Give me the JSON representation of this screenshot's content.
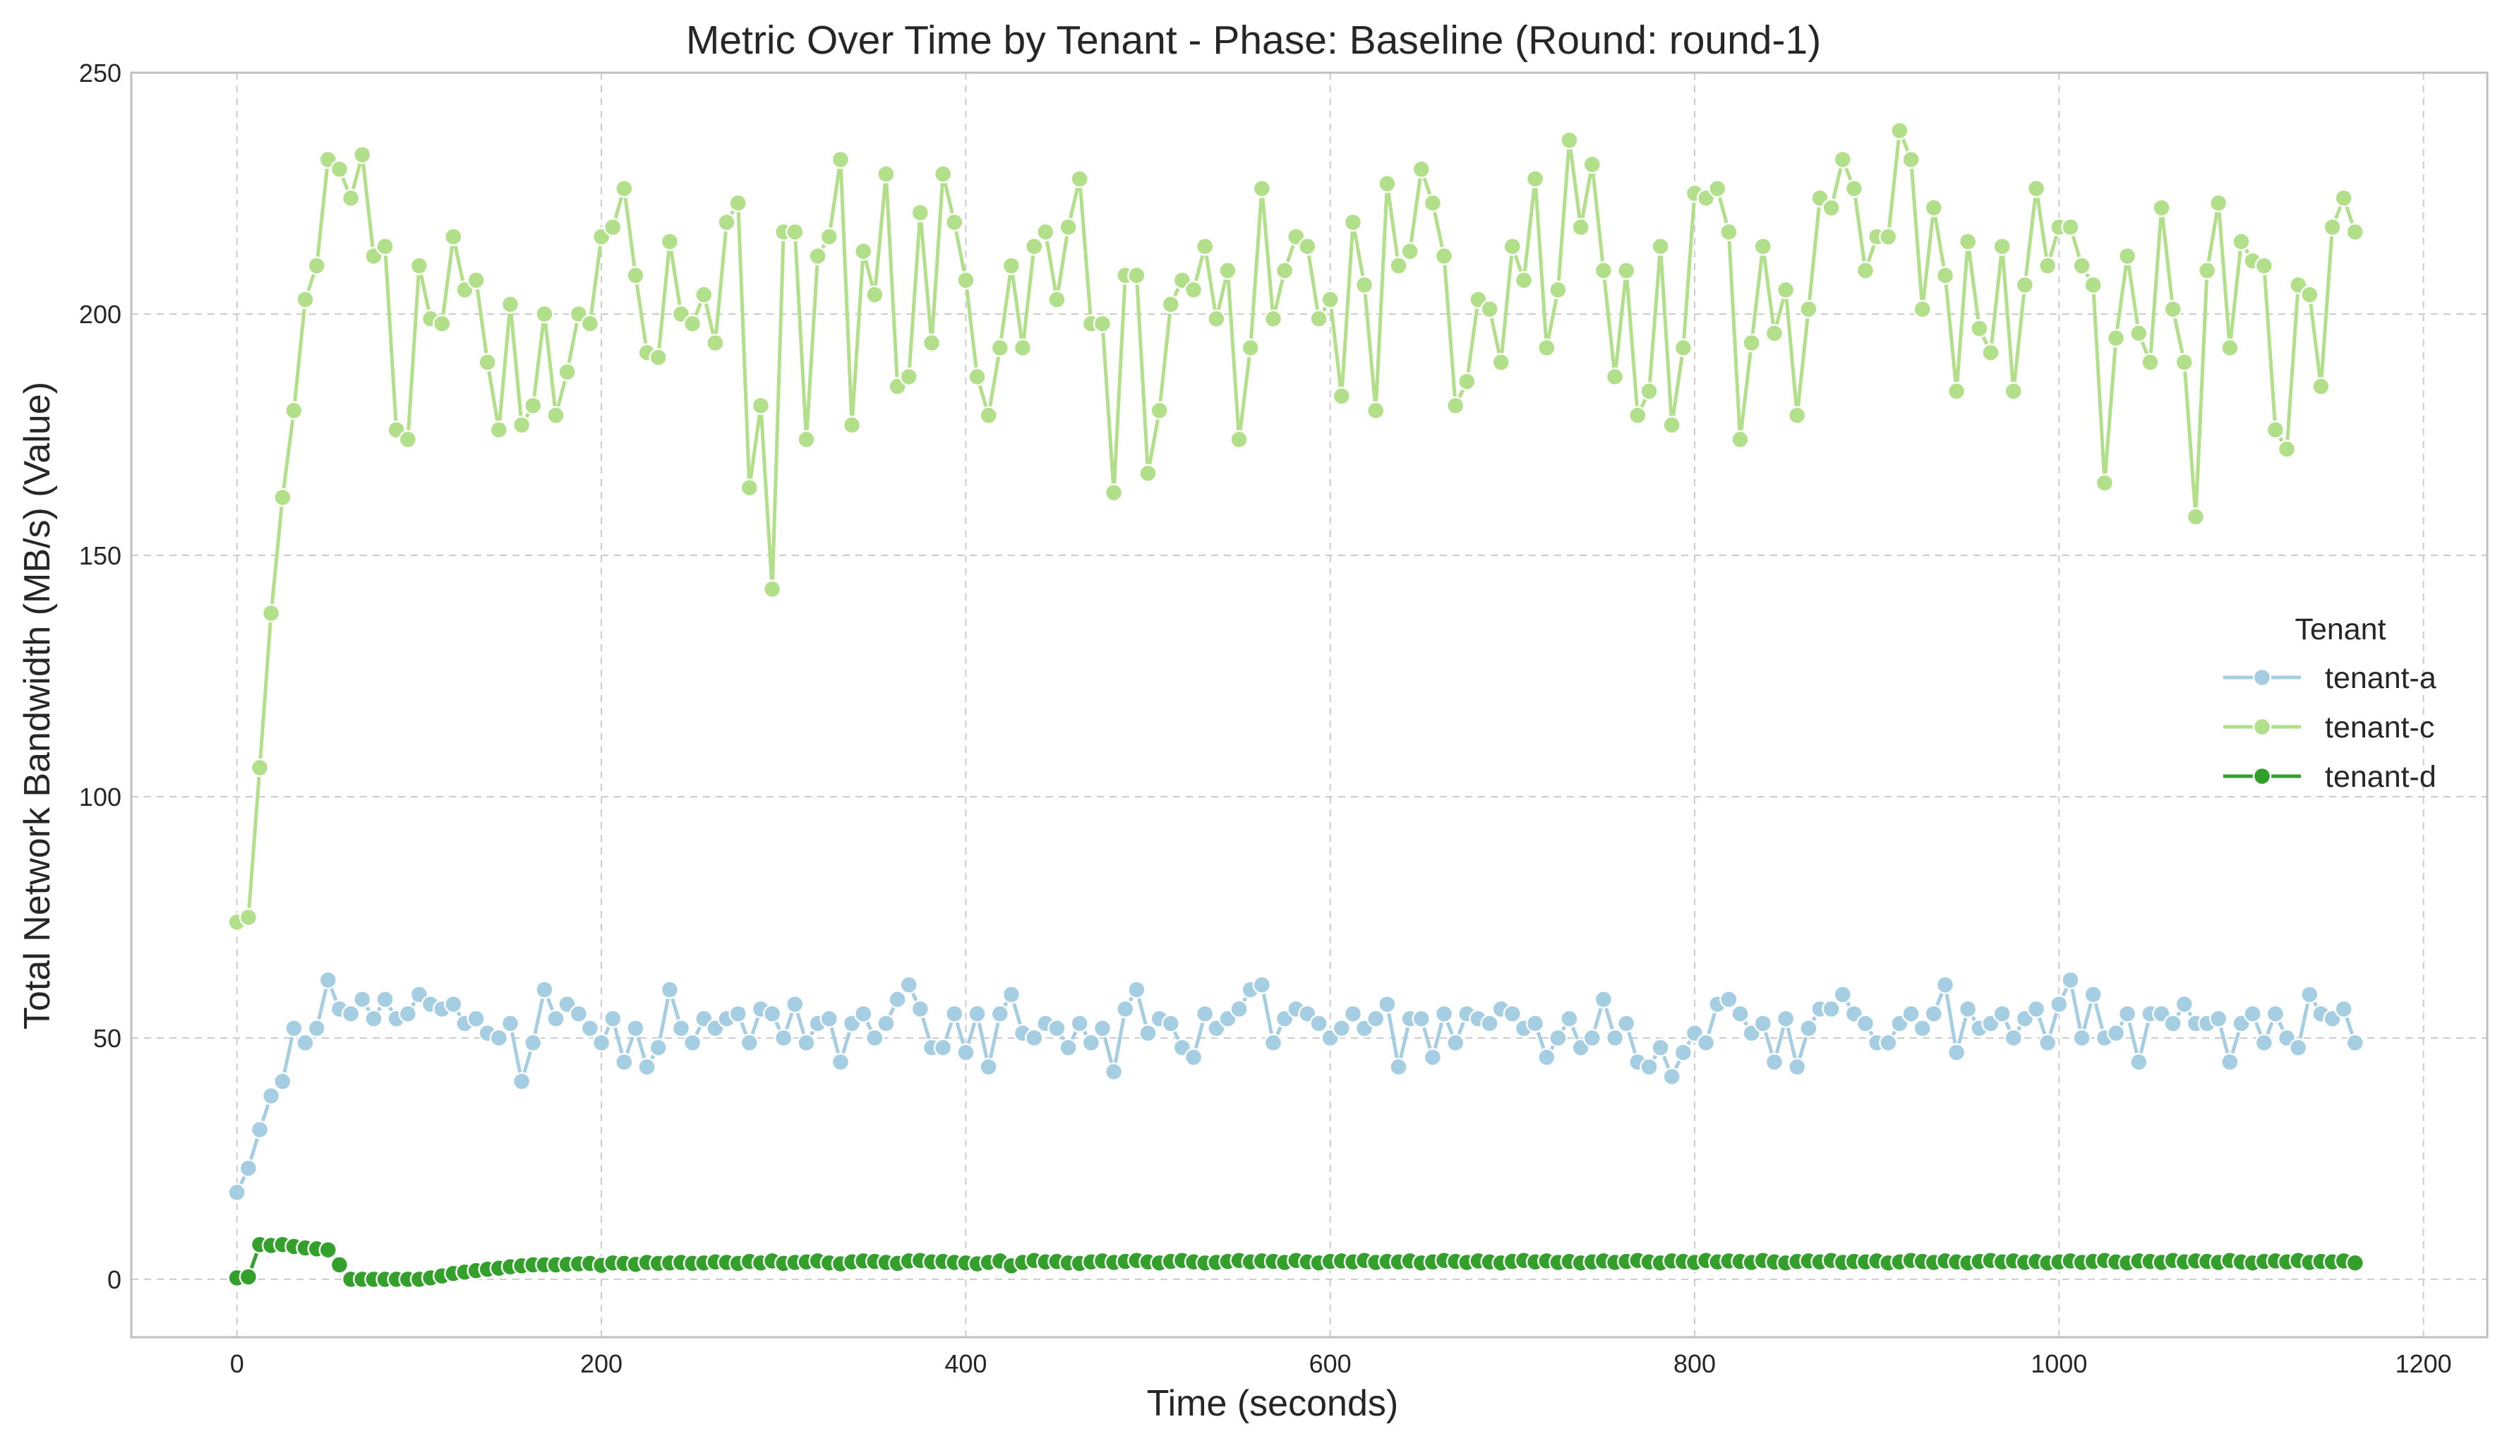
{
  "chart_data": {
    "type": "line",
    "title": "Metric Over Time by Tenant - Phase: Baseline (Round: round-1)",
    "xlabel": "Time (seconds)",
    "ylabel": "Total Network Bandwidth (MB/s) (Value)",
    "xlim": [
      -58,
      1235
    ],
    "ylim": [
      -12,
      250
    ],
    "xticks": [
      0,
      200,
      400,
      600,
      800,
      1000,
      1200
    ],
    "yticks": [
      0,
      50,
      100,
      150,
      200,
      250
    ],
    "grid": true,
    "legend": {
      "title": "Tenant",
      "placement": "center-right"
    },
    "x_step": 6.25,
    "series": [
      {
        "name": "tenant-a",
        "color": "#a6cee3",
        "values": [
          18,
          23,
          31,
          38,
          41,
          52,
          49,
          52,
          62,
          56,
          55,
          58,
          54,
          58,
          54,
          55,
          59,
          57,
          56,
          57,
          53,
          54,
          51,
          50,
          53,
          41,
          49,
          60,
          54,
          57,
          55,
          52,
          49,
          54,
          45,
          52,
          44,
          48,
          60,
          52,
          49,
          54,
          52,
          54,
          55,
          49,
          56,
          55,
          50,
          57,
          49,
          53,
          54,
          45,
          53,
          55,
          50,
          53,
          58,
          61,
          56,
          48,
          48,
          55,
          47,
          55,
          44,
          55,
          59,
          51,
          50,
          53,
          52,
          48,
          53,
          49,
          52,
          43,
          56,
          60,
          51,
          54,
          53,
          48,
          46,
          55,
          52,
          54,
          56,
          60,
          61,
          49,
          54,
          56,
          55,
          53,
          50,
          52,
          55,
          52,
          54,
          57,
          44,
          54,
          54,
          46,
          55,
          49,
          55,
          54,
          53,
          56,
          55,
          52,
          53,
          46,
          50,
          54,
          48,
          50,
          58,
          50,
          53,
          45,
          44,
          48,
          42,
          47,
          51,
          49,
          57,
          58,
          55,
          51,
          53,
          45,
          54,
          44,
          52,
          56,
          56,
          59,
          55,
          53,
          49,
          49,
          53,
          55,
          52,
          55,
          61,
          47,
          56,
          52,
          53,
          55,
          50,
          54,
          56,
          49,
          57,
          62,
          50,
          59,
          50,
          51,
          55,
          45,
          55,
          55,
          53,
          57,
          53,
          53,
          54,
          45,
          53,
          55,
          49,
          55,
          50,
          48,
          59,
          55,
          54,
          56,
          49
        ]
      },
      {
        "name": "tenant-c",
        "color": "#b2df8a",
        "values": [
          74,
          75,
          106,
          138,
          162,
          180,
          203,
          210,
          232,
          230,
          224,
          233,
          212,
          214,
          176,
          174,
          210,
          199,
          198,
          216,
          205,
          207,
          190,
          176,
          202,
          177,
          181,
          200,
          179,
          188,
          200,
          198,
          216,
          218,
          226,
          208,
          192,
          191,
          215,
          200,
          198,
          204,
          194,
          219,
          223,
          164,
          181,
          143,
          217,
          217,
          174,
          212,
          216,
          232,
          177,
          213,
          204,
          229,
          185,
          187,
          221,
          194,
          229,
          219,
          207,
          187,
          179,
          193,
          210,
          193,
          214,
          217,
          203,
          218,
          228,
          198,
          198,
          163,
          208,
          208,
          167,
          180,
          202,
          207,
          205,
          214,
          199,
          209,
          174,
          193,
          226,
          199,
          209,
          216,
          214,
          199,
          203,
          183,
          219,
          206,
          180,
          227,
          210,
          213,
          230,
          223,
          212,
          181,
          186,
          203,
          201,
          190,
          214,
          207,
          228,
          193,
          205,
          236,
          218,
          231,
          209,
          187,
          209,
          179,
          184,
          214,
          177,
          193,
          225,
          224,
          226,
          217,
          174,
          194,
          214,
          196,
          205,
          179,
          201,
          224,
          222,
          232,
          226,
          209,
          216,
          216,
          238,
          232,
          201,
          222,
          208,
          184,
          215,
          197,
          192,
          214,
          184,
          206,
          226,
          210,
          218,
          218,
          210,
          206,
          165,
          195,
          212,
          196,
          190,
          222,
          201,
          190,
          158,
          209,
          223,
          193,
          215,
          211,
          210,
          176,
          172,
          206,
          204,
          185,
          218,
          224,
          217
        ]
      },
      {
        "name": "tenant-d",
        "color": "#33a02c",
        "values": [
          0.3,
          0.5,
          7.2,
          7,
          7.2,
          6.8,
          6.5,
          6.3,
          6.1,
          3,
          0,
          0,
          0,
          0,
          0,
          0,
          0,
          0.3,
          0.7,
          1.2,
          1.5,
          1.8,
          2.1,
          2.3,
          2.6,
          2.8,
          3,
          3,
          3,
          3.1,
          3.2,
          3.3,
          2.9,
          3.4,
          3.3,
          3.1,
          3.5,
          3.3,
          3.4,
          3.5,
          3.3,
          3.4,
          3.6,
          3.5,
          3.3,
          3.7,
          3.4,
          3.8,
          3.3,
          3.5,
          3.6,
          3.8,
          3.4,
          3.2,
          3.6,
          3.8,
          3.7,
          3.5,
          3.3,
          3.8,
          3.9,
          3.6,
          3.7,
          3.5,
          3.4,
          3.2,
          3.5,
          3.8,
          2.8,
          3.5,
          3.9,
          3.6,
          3.7,
          3.4,
          3.3,
          3.6,
          3.8,
          3.5,
          3.7,
          3.9,
          3.6,
          3.4,
          3.7,
          3.9,
          3.6,
          3.4,
          3.5,
          3.7,
          3.9,
          3.6,
          3.8,
          3.7,
          3.5,
          3.9,
          3.6,
          3.4,
          3.7,
          3.8,
          3.6,
          3.9,
          3.5,
          3.7,
          3.6,
          3.8,
          3.4,
          3.6,
          3.9,
          3.7,
          3.5,
          3.8,
          3.6,
          3.4,
          3.7,
          3.9,
          3.6,
          3.8,
          3.5,
          3.7,
          3.4,
          3.6,
          3.8,
          3.5,
          3.7,
          3.9,
          3.6,
          3.4,
          3.8,
          3.7,
          3.5,
          3.9,
          3.6,
          3.8,
          3.7,
          3.5,
          3.9,
          3.6,
          3.4,
          3.7,
          3.8,
          3.6,
          3.9,
          3.5,
          3.7,
          3.6,
          3.8,
          3.4,
          3.6,
          3.9,
          3.7,
          3.5,
          3.8,
          3.6,
          3.4,
          3.7,
          3.9,
          3.6,
          3.8,
          3.5,
          3.7,
          3.4,
          3.6,
          3.8,
          3.5,
          3.7,
          3.9,
          3.6,
          3.4,
          3.8,
          3.7,
          3.5,
          3.9,
          3.6,
          3.8,
          3.7,
          3.5,
          3.9,
          3.6,
          3.4,
          3.7,
          3.8,
          3.6,
          3.9,
          3.5,
          3.7,
          3.6,
          3.8,
          3.4
        ]
      }
    ]
  }
}
